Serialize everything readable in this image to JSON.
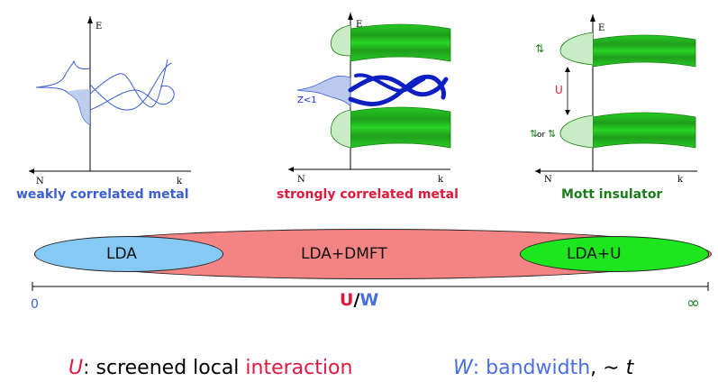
{
  "panels": {
    "weak": {
      "caption": "weakly correlated metal",
      "energy_label": "E",
      "dos_label": "N",
      "k_label": "k"
    },
    "strong": {
      "caption": "strongly correlated metal",
      "energy_label": "E",
      "dos_label": "N",
      "k_label": "k",
      "z_label": "Z<1"
    },
    "mott": {
      "caption": "Mott insulator",
      "energy_label": "E",
      "dos_label": "N",
      "k_label": "k",
      "gap_label": "U",
      "spin_up_label": "⇅",
      "spin_or_label": "or",
      "spin_left_label": "⇅",
      "spin_right_label": "⇅"
    }
  },
  "methods": {
    "lda": "LDA",
    "lda_dmft": "LDA+DMFT",
    "lda_u": "LDA+U"
  },
  "axis": {
    "start_label": "0",
    "end_label": "∞",
    "u_label": "U",
    "slash": "/",
    "w_label": "W"
  },
  "legend": {
    "u_symbol": "U",
    "u_colon": ":",
    "u_text": " screened local ",
    "u_highlight": "interaction",
    "w_symbol": "W",
    "w_text": ": bandwidth",
    "w_comma": ",",
    "t_approx": " ∼ ",
    "t_symbol": "t"
  },
  "colors": {
    "weak_blue": "#3b5fd1",
    "strong_red": "#e0183c",
    "mott_green": "#1a7d1a",
    "band_green": "#23b51f",
    "lda_fill": "#87c9f5",
    "dmft_fill": "#f48484",
    "ldau_fill": "#1ee61e",
    "w_blue": "#4a6fe0",
    "u_red": "#e01840"
  }
}
